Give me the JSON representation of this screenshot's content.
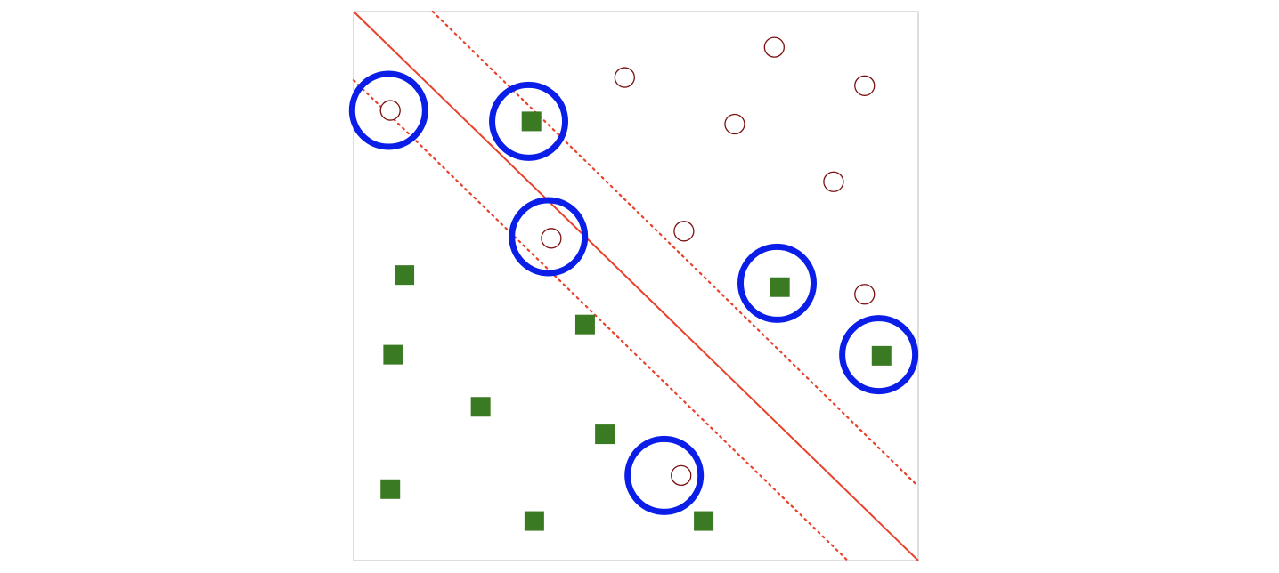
{
  "chart_data": {
    "type": "scatter",
    "title": "",
    "xlabel": "",
    "ylabel": "",
    "xlim": [
      0,
      10
    ],
    "ylim": [
      0,
      10
    ],
    "grid": false,
    "legend": "none",
    "series": [
      {
        "marker": "open-circle",
        "color": "#7a1010",
        "points": [
          [
            0.65,
            8.2
          ],
          [
            4.8,
            8.8
          ],
          [
            7.45,
            9.35
          ],
          [
            9.05,
            8.65
          ],
          [
            6.75,
            7.95
          ],
          [
            8.5,
            6.9
          ],
          [
            5.85,
            6.0
          ],
          [
            3.5,
            5.87
          ],
          [
            9.05,
            4.85
          ],
          [
            5.8,
            1.55
          ]
        ]
      },
      {
        "marker": "filled-square",
        "color": "#3a7a22",
        "points": [
          [
            3.15,
            8.0
          ],
          [
            0.9,
            5.2
          ],
          [
            4.1,
            4.3
          ],
          [
            0.7,
            3.75
          ],
          [
            2.25,
            2.8
          ],
          [
            4.45,
            2.3
          ],
          [
            0.65,
            1.3
          ],
          [
            3.2,
            0.72
          ],
          [
            6.2,
            0.72
          ],
          [
            7.55,
            4.98
          ],
          [
            9.35,
            3.73
          ]
        ]
      }
    ],
    "lines": [
      {
        "role": "decision-boundary",
        "style": "solid",
        "color": "#e8412c",
        "from": [
          0,
          10
        ],
        "to": [
          10,
          0
        ]
      },
      {
        "role": "margin",
        "style": "dotted",
        "color": "#e8412c",
        "from": [
          1.4,
          10
        ],
        "to": [
          10,
          1.35
        ]
      },
      {
        "role": "margin",
        "style": "dotted",
        "color": "#e8412c",
        "from": [
          0,
          8.75
        ],
        "to": [
          8.75,
          0
        ]
      }
    ],
    "highlights": {
      "style": "ring",
      "color": "#0a1ee8",
      "points": [
        [
          0.62,
          8.2
        ],
        [
          3.1,
          8.0
        ],
        [
          3.45,
          5.9
        ],
        [
          7.5,
          5.05
        ],
        [
          9.3,
          3.75
        ],
        [
          5.5,
          1.55
        ]
      ]
    }
  }
}
